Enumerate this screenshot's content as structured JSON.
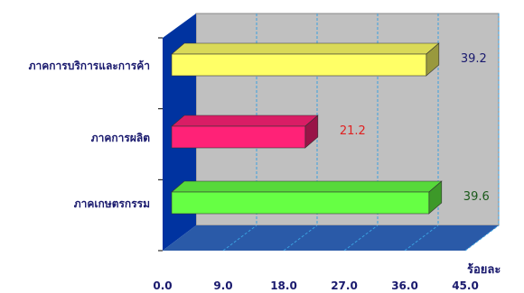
{
  "colors": {
    "background_wall": "#c0c0c0",
    "side_wall": "#0033a0",
    "floor": "#2a5aa8",
    "grid": "#3aa0e0",
    "axis_text": "#1a1a6e"
  },
  "chart_data": {
    "type": "bar",
    "orientation": "horizontal",
    "style": "3d",
    "categories": [
      "ภาคการบริการและการค้า",
      "ภาคการผลิต",
      "ภาคเกษตรกรรม"
    ],
    "values": [
      39.2,
      21.2,
      39.6
    ],
    "value_labels": [
      "39.2",
      "21.2",
      "39.6"
    ],
    "bar_colors": [
      "#ffff66",
      "#ff2277",
      "#66ff44"
    ],
    "label_colors": [
      "#1a1a6e",
      "#e02020",
      "#1a5a1a"
    ],
    "xlim": [
      0,
      45
    ],
    "xticks": [
      "0.0",
      "9.0",
      "18.0",
      "27.0",
      "36.0",
      "45.0"
    ],
    "xlabel": "ร้อยละ",
    "ylabel": "",
    "title": "",
    "grid": true
  }
}
